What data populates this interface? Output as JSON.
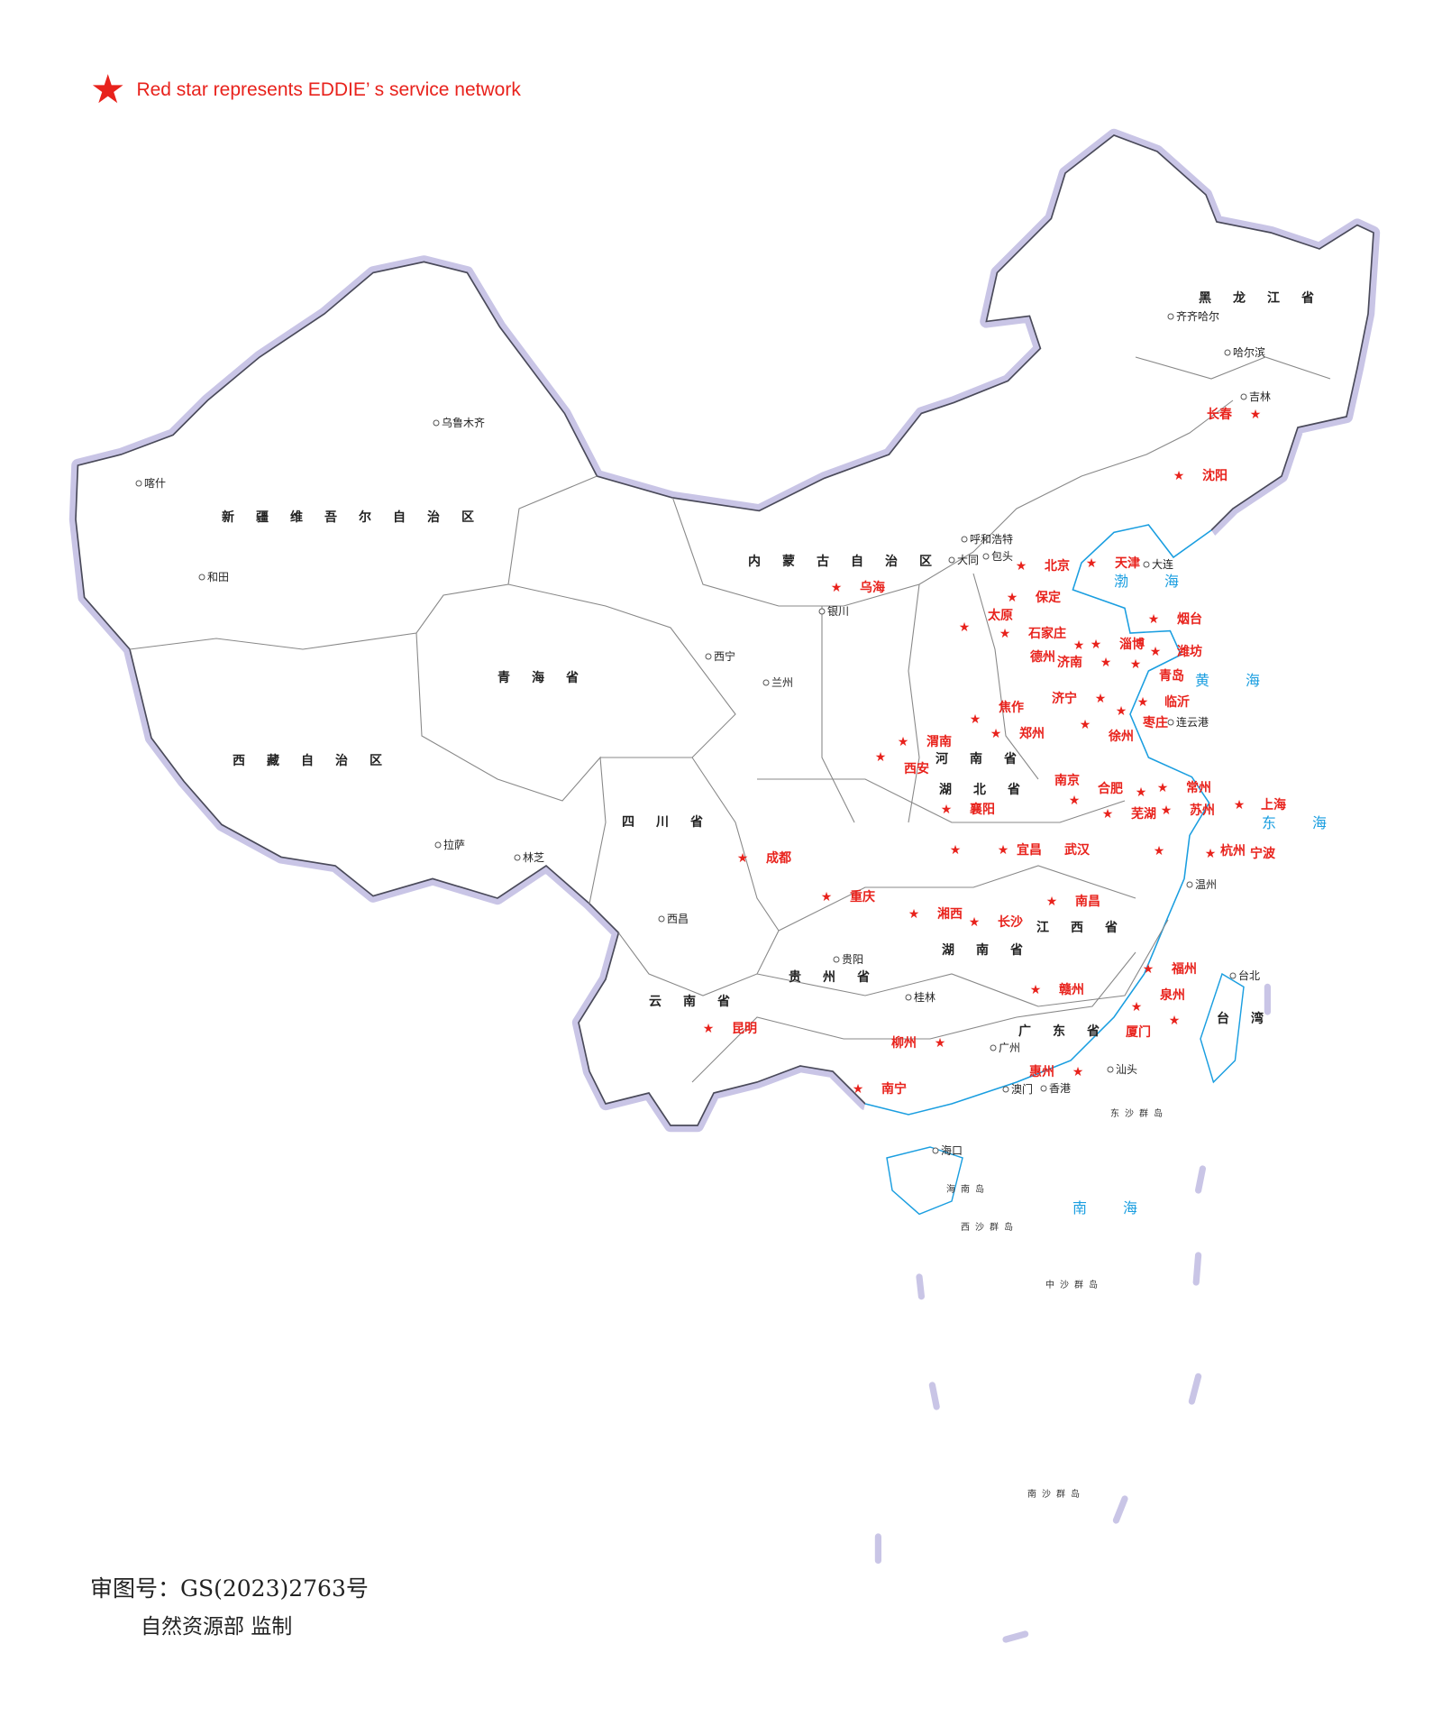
{
  "legend": {
    "icon": "red-star-icon",
    "text": "Red star represents EDDIE’ s service network",
    "color": "#e8221c"
  },
  "service_cities": [
    "乌海",
    "北京",
    "天津",
    "保定",
    "石家庄",
    "太原",
    "沈阳",
    "长春",
    "德州",
    "淄博",
    "潍坊",
    "烟台",
    "青岛",
    "济南",
    "济宁",
    "枣庄",
    "临沂",
    "徐州",
    "郑州",
    "焦作",
    "渭南",
    "西安",
    "成都",
    "重庆",
    "襄阳",
    "宜昌",
    "武汉",
    "合肥",
    "南京",
    "芜湖",
    "常州",
    "苏州",
    "上海",
    "杭州",
    "宁波",
    "南昌",
    "长沙",
    "湘西",
    "赣州",
    "福州",
    "泉州",
    "厦门",
    "柳州",
    "惠州",
    "南宁",
    "昆明"
  ],
  "other_cities": [
    "哈尔滨",
    "呼和浩特",
    "银川",
    "兰州",
    "西宁",
    "乌鲁木齐",
    "拉萨",
    "贵阳",
    "广州",
    "香港",
    "澳门",
    "海口",
    "台北",
    "大连",
    "包头",
    "大同",
    "吉林",
    "齐齐哈尔",
    "喀什",
    "和田",
    "林芝",
    "西昌",
    "桂林",
    "汕头",
    "温州",
    "连云港"
  ],
  "regions": [
    "新疆维吾尔自治区",
    "西藏自治区",
    "青海省",
    "内蒙古自治区",
    "黑龙江省",
    "四川省",
    "湖北省",
    "湖南省",
    "广东省",
    "云南省",
    "贵州省",
    "河南省",
    "江西省",
    "台湾"
  ],
  "seas": [
    "渤海",
    "黄海",
    "东海",
    "南海"
  ],
  "islands": [
    "东沙群岛",
    "西沙群岛",
    "中沙群岛",
    "南沙群岛",
    "海南岛"
  ],
  "footer": {
    "approval_no": "审图号：GS(2023)2763号",
    "issuer": "自然资源部  监制"
  },
  "colors": {
    "star": "#e8221c",
    "border": "#c9c5e6",
    "coast": "#1a9ee0",
    "province_line": "#888888"
  }
}
